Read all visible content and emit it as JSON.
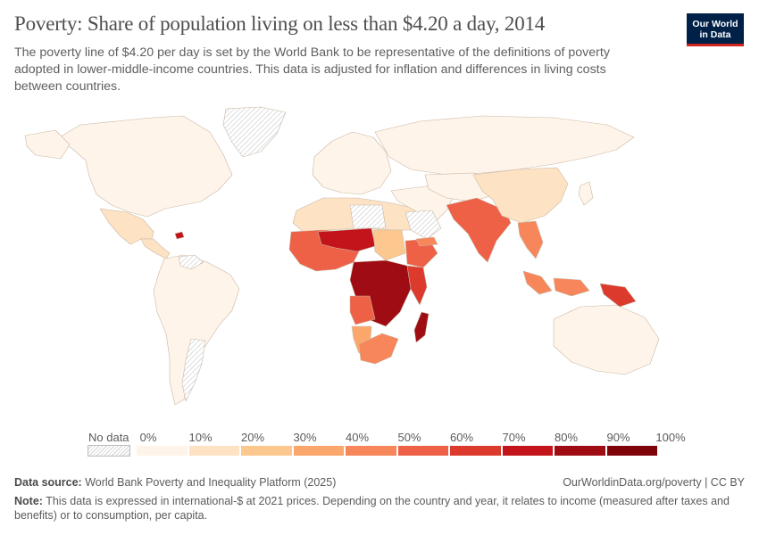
{
  "header": {
    "title": "Poverty: Share of population living on less than $4.20 a day, 2014",
    "subtitle": "The poverty line of $4.20 per day is set by the World Bank to be representative of the definitions of poverty adopted in lower-middle-income countries. This data is adjusted for inflation and differences in living costs between countries.",
    "logo_line1": "Our World",
    "logo_line2": "in Data"
  },
  "legend": {
    "no_data_label": "No data",
    "ticks": [
      "0%",
      "10%",
      "20%",
      "30%",
      "40%",
      "50%",
      "60%",
      "70%",
      "80%",
      "90%",
      "100%"
    ],
    "bins": [
      {
        "range": "0-10%",
        "color": "#fff4e9"
      },
      {
        "range": "10-20%",
        "color": "#fde2c3"
      },
      {
        "range": "20-30%",
        "color": "#fcc88f"
      },
      {
        "range": "30-40%",
        "color": "#fba76c"
      },
      {
        "range": "40-50%",
        "color": "#f7865a"
      },
      {
        "range": "50-60%",
        "color": "#ee6147"
      },
      {
        "range": "60-70%",
        "color": "#dc3a2c"
      },
      {
        "range": "70-80%",
        "color": "#c2141a"
      },
      {
        "range": "80-90%",
        "color": "#a00c13"
      },
      {
        "range": "90-100%",
        "color": "#7e0409"
      }
    ]
  },
  "map_regions": [
    {
      "name": "North America",
      "color": "#fff4e9"
    },
    {
      "name": "Greenland",
      "color": "no-data"
    },
    {
      "name": "Mexico",
      "color": "#fde2c3"
    },
    {
      "name": "Central America",
      "color": "#fde2c3"
    },
    {
      "name": "Haiti",
      "color": "#c2141a"
    },
    {
      "name": "South America",
      "color": "#fff4e9"
    },
    {
      "name": "Venezuela",
      "color": "no-data"
    },
    {
      "name": "Argentina",
      "color": "no-data"
    },
    {
      "name": "Europe",
      "color": "#fff4e9"
    },
    {
      "name": "Russia",
      "color": "#fff4e9"
    },
    {
      "name": "North Africa",
      "color": "#fde2c3"
    },
    {
      "name": "Libya",
      "color": "no-data"
    },
    {
      "name": "West Africa",
      "color": "#ee6147"
    },
    {
      "name": "Sahel",
      "color": "#c2141a"
    },
    {
      "name": "Sudan",
      "color": "#fcc88f"
    },
    {
      "name": "Ethiopia",
      "color": "#ee6147"
    },
    {
      "name": "Central Africa",
      "color": "#a00c13"
    },
    {
      "name": "East Africa",
      "color": "#dc3a2c"
    },
    {
      "name": "Angola",
      "color": "#ee6147"
    },
    {
      "name": "Namibia",
      "color": "#fba76c"
    },
    {
      "name": "South Africa",
      "color": "#f7865a"
    },
    {
      "name": "Madagascar",
      "color": "#a00c13"
    },
    {
      "name": "Middle East",
      "color": "#fff4e9"
    },
    {
      "name": "Saudi Arabia",
      "color": "no-data"
    },
    {
      "name": "Yemen",
      "color": "#f7865a"
    },
    {
      "name": "Central Asia",
      "color": "#fff4e9"
    },
    {
      "name": "South Asia",
      "color": "#ee6147"
    },
    {
      "name": "China",
      "color": "#fde2c3"
    },
    {
      "name": "Southeast Asia",
      "color": "#f7865a"
    },
    {
      "name": "Indonesia",
      "color": "#f7865a"
    },
    {
      "name": "Papua New Guinea",
      "color": "#dc3a2c"
    },
    {
      "name": "Australia",
      "color": "#fff4e9"
    },
    {
      "name": "Japan",
      "color": "#fff4e9"
    }
  ],
  "footer": {
    "source_label": "Data source:",
    "source_text": "World Bank Poverty and Inequality Platform (2025)",
    "url_text": "OurWorldinData.org/poverty | CC BY",
    "note_label": "Note:",
    "note_text": "This data is expressed in international-$ at 2021 prices. Depending on the country and year, it relates to income (measured after taxes and benefits) or to consumption, per capita."
  }
}
